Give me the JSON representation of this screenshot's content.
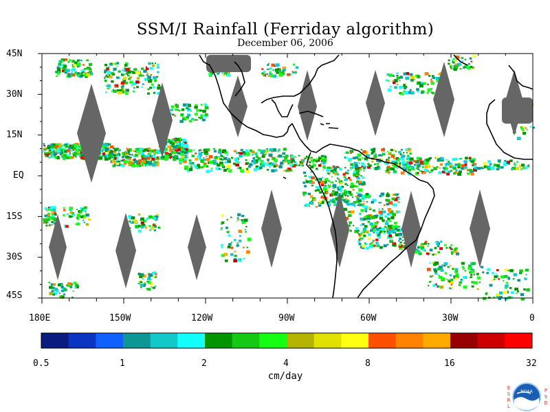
{
  "title": "SSM/I Rainfall (Ferriday algorithm)",
  "date": "December 06, 2006",
  "lat_labels": [
    "45N",
    "30N",
    "15N",
    "EQ",
    "15S",
    "30S",
    "45S"
  ],
  "lon_labels": [
    "180E",
    "150W",
    "120W",
    "90W",
    "60W",
    "30W",
    "0"
  ],
  "colorbar": {
    "unit": "cm/day",
    "tick_labels": [
      "0.5",
      "1",
      "2",
      "4",
      "8",
      "16",
      "32"
    ],
    "colors": [
      "#0b1c7f",
      "#0a35c0",
      "#1060ff",
      "#0c9696",
      "#12c8c8",
      "#14ffff",
      "#009600",
      "#14c814",
      "#14ff14",
      "#b4b400",
      "#e1e100",
      "#ffff14",
      "#ff5000",
      "#ff8200",
      "#ffaa00",
      "#960000",
      "#cd0000",
      "#ff0000"
    ]
  },
  "logo": {
    "left_letters": [
      "E",
      "S",
      "R",
      "L"
    ],
    "right_letters": [
      "P",
      "S",
      "D"
    ],
    "seal_text": "NOAA"
  },
  "colors": {
    "land_outline": "#000000",
    "gap": "#666666"
  }
}
